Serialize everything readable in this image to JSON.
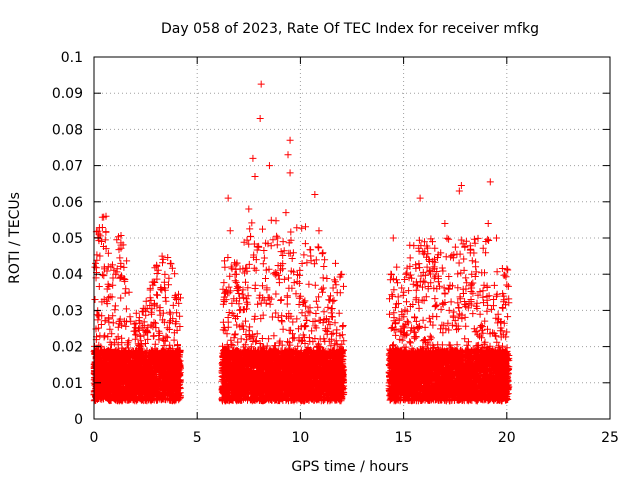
{
  "chart_data": {
    "type": "scatter",
    "title": "Day 058 of 2023, Rate Of TEC Index for receiver mfkg",
    "xlabel": "GPS time / hours",
    "ylabel": "ROTI / TECUs",
    "xlim": [
      0,
      25
    ],
    "ylim": [
      0,
      0.1
    ],
    "x_ticks": [
      "0",
      "5",
      "10",
      "15",
      "20",
      "25"
    ],
    "y_ticks": [
      "0",
      "0.01",
      "0.02",
      "0.03",
      "0.04",
      "0.05",
      "0.06",
      "0.07",
      "0.08",
      "0.09",
      "0.1"
    ],
    "grid": true,
    "marker": "+",
    "color": "#ff0000",
    "coverage_hours": [
      [
        0,
        4.2
      ],
      [
        6.2,
        12.1
      ],
      [
        14.3,
        20.1
      ]
    ],
    "notable_points": [
      {
        "x": 0.1,
        "y": 0.039
      },
      {
        "x": 0.5,
        "y": 0.042
      },
      {
        "x": 1.3,
        "y": 0.043
      },
      {
        "x": 1.7,
        "y": 0.035
      },
      {
        "x": 2.2,
        "y": 0.028
      },
      {
        "x": 3.3,
        "y": 0.045
      },
      {
        "x": 3.7,
        "y": 0.043
      },
      {
        "x": 4.0,
        "y": 0.033
      },
      {
        "x": 6.5,
        "y": 0.061
      },
      {
        "x": 6.6,
        "y": 0.052
      },
      {
        "x": 6.9,
        "y": 0.04
      },
      {
        "x": 7.5,
        "y": 0.058
      },
      {
        "x": 7.7,
        "y": 0.072
      },
      {
        "x": 7.8,
        "y": 0.067
      },
      {
        "x": 8.1,
        "y": 0.0925
      },
      {
        "x": 8.05,
        "y": 0.083
      },
      {
        "x": 8.5,
        "y": 0.07
      },
      {
        "x": 8.9,
        "y": 0.05
      },
      {
        "x": 9.5,
        "y": 0.077
      },
      {
        "x": 9.4,
        "y": 0.073
      },
      {
        "x": 9.5,
        "y": 0.068
      },
      {
        "x": 9.3,
        "y": 0.057
      },
      {
        "x": 10.7,
        "y": 0.062
      },
      {
        "x": 10.9,
        "y": 0.052
      },
      {
        "x": 11.7,
        "y": 0.043
      },
      {
        "x": 12.0,
        "y": 0.04
      },
      {
        "x": 14.5,
        "y": 0.05
      },
      {
        "x": 15.3,
        "y": 0.048
      },
      {
        "x": 15.8,
        "y": 0.061
      },
      {
        "x": 16.4,
        "y": 0.049
      },
      {
        "x": 17.0,
        "y": 0.054
      },
      {
        "x": 17.7,
        "y": 0.063
      },
      {
        "x": 17.8,
        "y": 0.0645
      },
      {
        "x": 18.3,
        "y": 0.04
      },
      {
        "x": 19.2,
        "y": 0.0655
      },
      {
        "x": 19.1,
        "y": 0.054
      },
      {
        "x": 19.5,
        "y": 0.05
      },
      {
        "x": 20.0,
        "y": 0.037
      }
    ]
  }
}
